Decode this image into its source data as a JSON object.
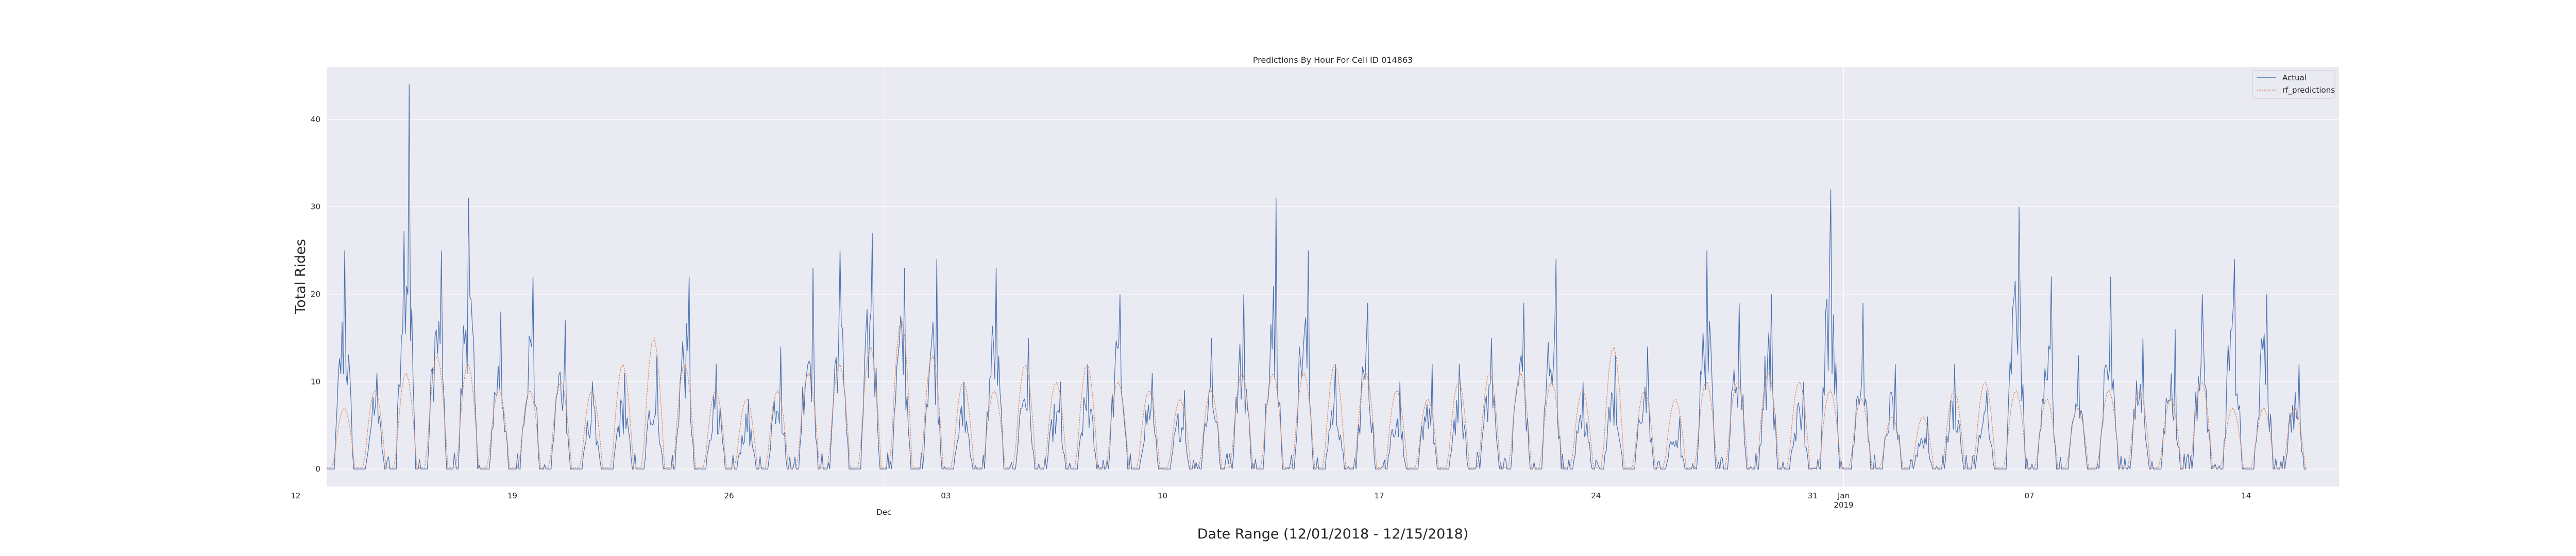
{
  "chart_data": {
    "type": "line",
    "title": "Predictions By Hour For Cell ID 014863",
    "xlabel": "Date Range (12/01/2018 - 12/15/2018)",
    "ylabel": "Total Rides",
    "x_start": "2018-11-13T00:00",
    "x_end": "2019-01-17T00:00",
    "ylim": [
      -2,
      46
    ],
    "yticks": [
      0,
      10,
      20,
      30,
      40
    ],
    "xticks": [
      {
        "date": "2018-11-12",
        "label": "12",
        "sub": ""
      },
      {
        "date": "2018-11-19",
        "label": "19",
        "sub": ""
      },
      {
        "date": "2018-11-26",
        "label": "26",
        "sub": ""
      },
      {
        "date": "2018-12-01",
        "label": "",
        "sub": "Dec"
      },
      {
        "date": "2018-12-03",
        "label": "03",
        "sub": ""
      },
      {
        "date": "2018-12-10",
        "label": "10",
        "sub": ""
      },
      {
        "date": "2018-12-17",
        "label": "17",
        "sub": ""
      },
      {
        "date": "2018-12-24",
        "label": "24",
        "sub": ""
      },
      {
        "date": "2018-12-31",
        "label": "31",
        "sub": ""
      },
      {
        "date": "2019-01-01",
        "label": "Jan",
        "sub": "2019"
      },
      {
        "date": "2019-01-07",
        "label": "07",
        "sub": ""
      },
      {
        "date": "2019-01-14",
        "label": "14",
        "sub": ""
      }
    ],
    "grid": true,
    "legend_position": "top-right",
    "series": [
      {
        "name": "Actual",
        "color": "#4c72b0",
        "x": [
          "2018-11-13",
          "2018-11-14",
          "2018-11-15",
          "2018-11-16",
          "2018-11-17",
          "2018-11-18",
          "2018-11-19",
          "2018-11-20",
          "2018-11-21",
          "2018-11-22",
          "2018-11-23",
          "2018-11-24",
          "2018-11-25",
          "2018-11-26",
          "2018-11-27",
          "2018-11-28",
          "2018-11-29",
          "2018-11-30",
          "2018-12-01",
          "2018-12-02",
          "2018-12-03",
          "2018-12-04",
          "2018-12-05",
          "2018-12-06",
          "2018-12-07",
          "2018-12-08",
          "2018-12-09",
          "2018-12-10",
          "2018-12-11",
          "2018-12-12",
          "2018-12-13",
          "2018-12-14",
          "2018-12-15",
          "2018-12-16",
          "2018-12-17",
          "2018-12-18",
          "2018-12-19",
          "2018-12-20",
          "2018-12-21",
          "2018-12-22",
          "2018-12-23",
          "2018-12-24",
          "2018-12-25",
          "2018-12-26",
          "2018-12-27",
          "2018-12-28",
          "2018-12-29",
          "2018-12-30",
          "2018-12-31",
          "2019-01-01",
          "2019-01-02",
          "2019-01-03",
          "2019-01-04",
          "2019-01-05",
          "2019-01-06",
          "2019-01-07",
          "2019-01-08",
          "2019-01-09",
          "2019-01-10",
          "2019-01-11",
          "2019-01-12",
          "2019-01-13",
          "2019-01-14",
          "2019-01-15"
        ],
        "peak": [
          25,
          11,
          44,
          25,
          31,
          18,
          22,
          17,
          10,
          11,
          13,
          22,
          12,
          8,
          14,
          23,
          25,
          27,
          23,
          24,
          10,
          23,
          15,
          10,
          12,
          20,
          11,
          9,
          15,
          20,
          31,
          25,
          12,
          19,
          10,
          12,
          12,
          15,
          19,
          24,
          10,
          13,
          14,
          6,
          25,
          19,
          20,
          10,
          32,
          19,
          12,
          6,
          12,
          9,
          30,
          22,
          13,
          22,
          15,
          16,
          20,
          24,
          20,
          12
        ]
      },
      {
        "name": "rf_predictions",
        "color": "#dd8452",
        "x": [
          "2018-11-13",
          "2018-11-14",
          "2018-11-15",
          "2018-11-16",
          "2018-11-17",
          "2018-11-18",
          "2018-11-19",
          "2018-11-20",
          "2018-11-21",
          "2018-11-22",
          "2018-11-23",
          "2018-11-24",
          "2018-11-25",
          "2018-11-26",
          "2018-11-27",
          "2018-11-28",
          "2018-11-29",
          "2018-11-30",
          "2018-12-01",
          "2018-12-02",
          "2018-12-03",
          "2018-12-04",
          "2018-12-05",
          "2018-12-06",
          "2018-12-07",
          "2018-12-08",
          "2018-12-09",
          "2018-12-10",
          "2018-12-11",
          "2018-12-12",
          "2018-12-13",
          "2018-12-14",
          "2018-12-15",
          "2018-12-16",
          "2018-12-17",
          "2018-12-18",
          "2018-12-19",
          "2018-12-20",
          "2018-12-21",
          "2018-12-22",
          "2018-12-23",
          "2018-12-24",
          "2018-12-25",
          "2018-12-26",
          "2018-12-27",
          "2018-12-28",
          "2018-12-29",
          "2018-12-30",
          "2018-12-31",
          "2019-01-01",
          "2019-01-02",
          "2019-01-03",
          "2019-01-04",
          "2019-01-05",
          "2019-01-06",
          "2019-01-07",
          "2019-01-08",
          "2019-01-09",
          "2019-01-10",
          "2019-01-11",
          "2019-01-12",
          "2019-01-13",
          "2019-01-14",
          "2019-01-15"
        ],
        "peak": [
          7,
          9,
          11,
          13,
          12,
          9,
          9,
          10,
          9,
          12,
          15,
          12,
          9,
          8,
          9,
          11,
          12,
          14,
          17,
          13,
          10,
          9,
          12,
          10,
          12,
          10,
          9,
          8,
          9,
          11,
          11,
          11,
          12,
          11,
          9,
          8,
          10,
          11,
          11,
          10,
          9,
          14,
          9,
          8,
          10,
          10,
          11,
          10,
          9,
          8,
          6,
          6,
          9,
          10,
          9,
          8,
          7,
          9,
          9,
          8,
          10,
          7,
          7,
          7
        ]
      }
    ]
  }
}
